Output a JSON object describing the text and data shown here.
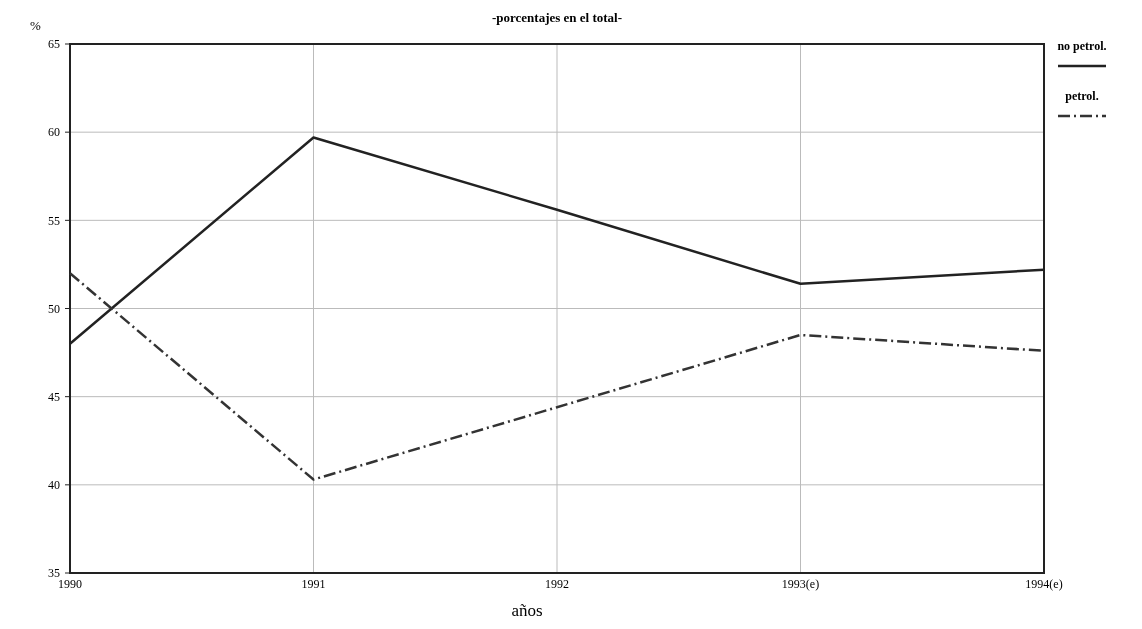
{
  "chart_data": {
    "type": "line",
    "title": "-porcentajes en el total-",
    "ylabel": "%",
    "xlabel": "años",
    "categories": [
      "1990",
      "1991",
      "1992",
      "1993(e)",
      "1994(e)"
    ],
    "series": [
      {
        "name": "no petrol.",
        "color": "#222222",
        "line_style": "solid",
        "values": [
          48,
          59.7,
          55.6,
          51.4,
          52.2
        ]
      },
      {
        "name": "petrol.",
        "color": "#333333",
        "line_style": "dashed",
        "values": [
          52,
          40.3,
          44.4,
          48.5,
          47.6
        ]
      }
    ],
    "ylim": [
      35,
      65
    ],
    "yticks": [
      35,
      40,
      45,
      50,
      55,
      60,
      65
    ],
    "grid": true,
    "legend": "top right",
    "marker": "none"
  }
}
